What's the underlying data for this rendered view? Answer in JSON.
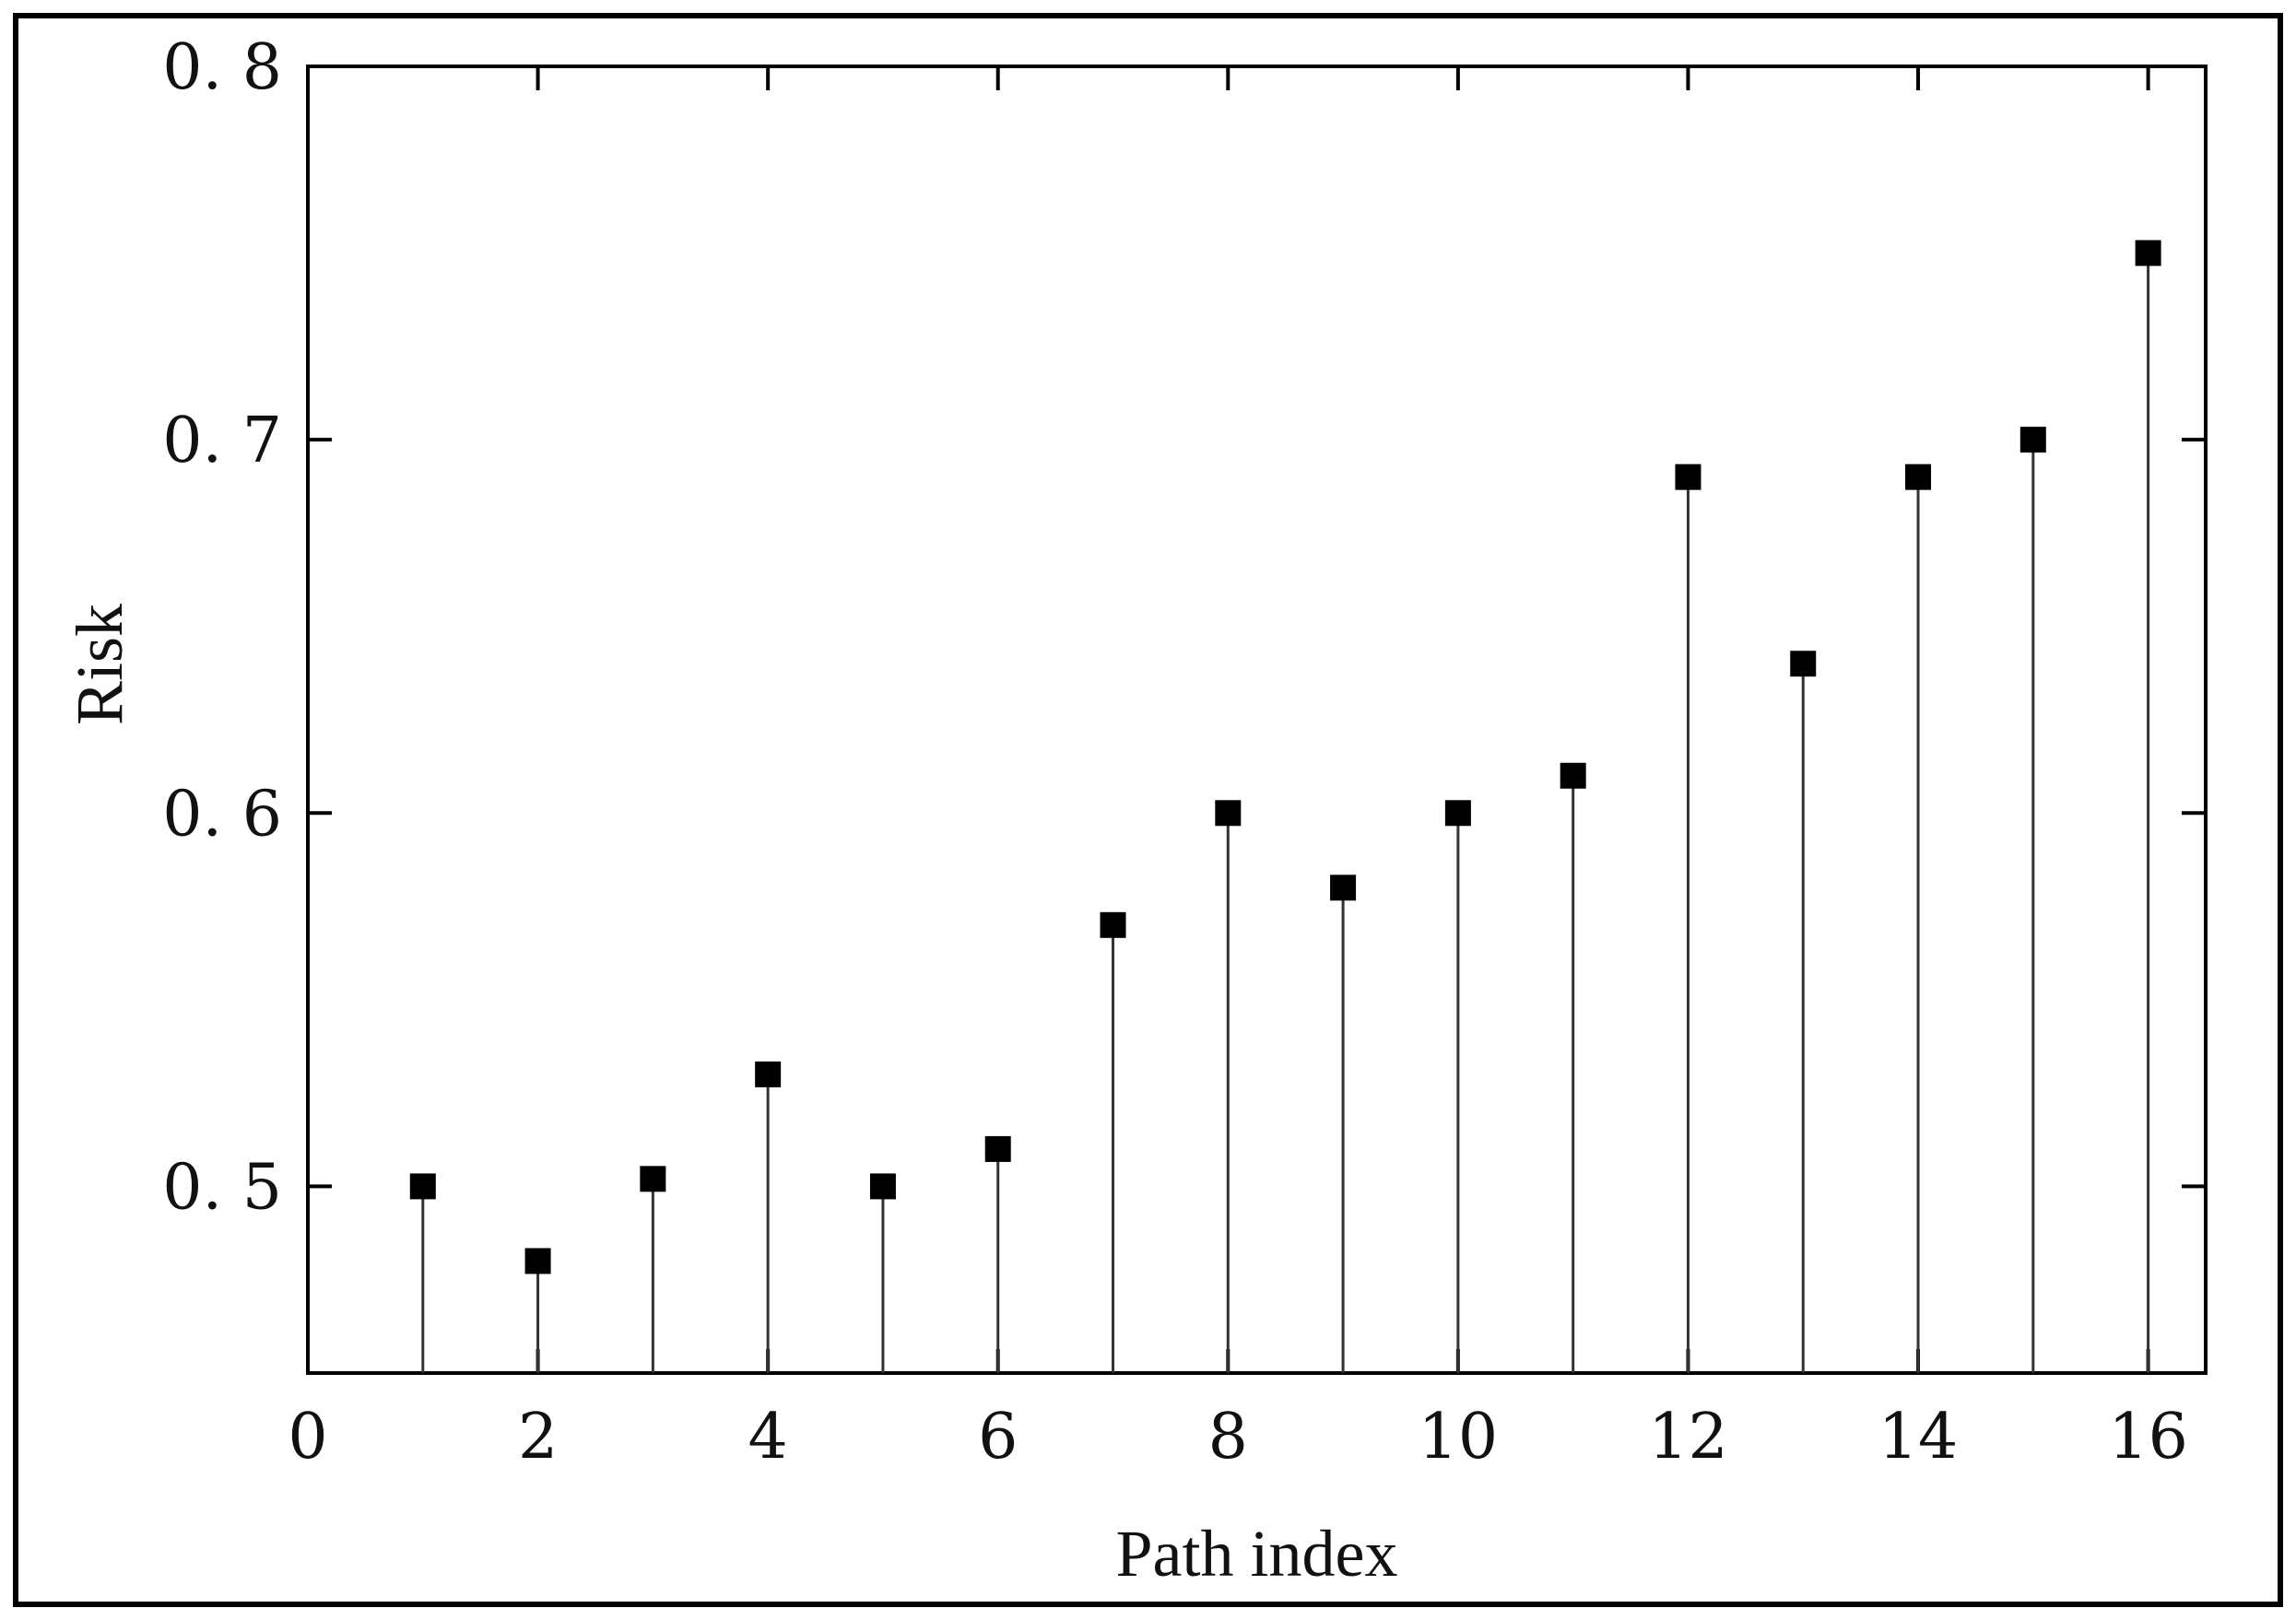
{
  "chart_data": {
    "type": "stem",
    "title": "",
    "xlabel": "Path index",
    "ylabel": "Risk",
    "xlim": [
      0,
      16.5
    ],
    "ylim": [
      0.45,
      0.8
    ],
    "xticks": [
      0,
      2,
      4,
      6,
      8,
      10,
      12,
      14,
      16
    ],
    "xtick_labels": [
      "0",
      "2",
      "4",
      "6",
      "8",
      "10",
      "12",
      "14",
      "16"
    ],
    "yticks": [
      0.5,
      0.6,
      0.7,
      0.8
    ],
    "ytick_labels": [
      "0. 5",
      "0. 6",
      "0. 7",
      "0. 8"
    ],
    "grid": false,
    "marker": "square",
    "series": [
      {
        "x": [
          1,
          2,
          3,
          4,
          5,
          6,
          7,
          8,
          9,
          10,
          11,
          12,
          13,
          14,
          15,
          16
        ],
        "values": [
          0.5,
          0.48,
          0.502,
          0.53,
          0.5,
          0.51,
          0.57,
          0.6,
          0.58,
          0.6,
          0.61,
          0.69,
          0.64,
          0.69,
          0.7,
          0.75
        ]
      }
    ]
  }
}
